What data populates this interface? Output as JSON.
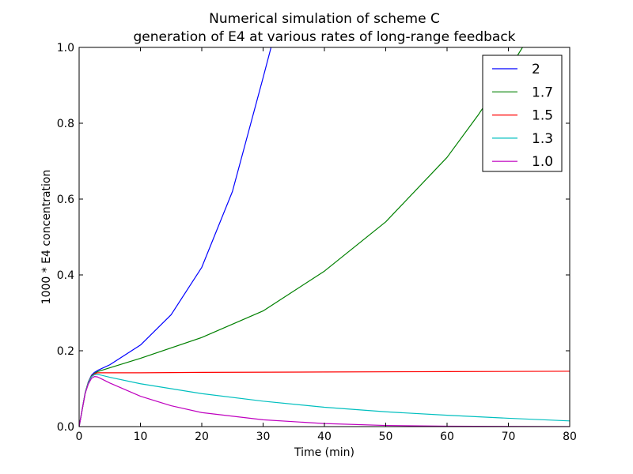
{
  "chart_data": {
    "type": "line",
    "title": "Numerical simulation of scheme C",
    "subtitle": "generation of E4 at various rates of long-range feedback",
    "xlabel": "Time (min)",
    "ylabel": "1000 * E4 concentration",
    "xlim": [
      0,
      80
    ],
    "ylim": [
      0.0,
      1.0
    ],
    "xticks": [
      "0",
      "10",
      "20",
      "30",
      "40",
      "50",
      "60",
      "70",
      "80"
    ],
    "yticks": [
      "0.0",
      "0.2",
      "0.4",
      "0.6",
      "0.8",
      "1.0"
    ],
    "grid": false,
    "legend_position": "top-right",
    "series": [
      {
        "name": "2",
        "color": "#0000ff",
        "x": [
          0,
          0.5,
          1,
          1.5,
          2,
          2.5,
          3,
          5,
          10,
          15,
          20,
          25,
          28,
          30,
          31.3
        ],
        "y": [
          0,
          0.045,
          0.09,
          0.118,
          0.135,
          0.143,
          0.148,
          0.163,
          0.215,
          0.295,
          0.42,
          0.62,
          0.8,
          0.92,
          1.0
        ]
      },
      {
        "name": "1.7",
        "color": "#008000",
        "x": [
          0,
          0.5,
          1,
          1.5,
          2,
          2.5,
          3,
          5,
          10,
          20,
          30,
          40,
          50,
          60,
          65,
          70,
          72.3
        ],
        "y": [
          0,
          0.045,
          0.09,
          0.117,
          0.133,
          0.14,
          0.145,
          0.155,
          0.18,
          0.235,
          0.305,
          0.41,
          0.54,
          0.71,
          0.82,
          0.94,
          1.0
        ]
      },
      {
        "name": "1.5",
        "color": "#ff0000",
        "x": [
          0,
          0.5,
          1,
          1.5,
          2,
          2.5,
          3,
          10,
          20,
          40,
          60,
          80
        ],
        "y": [
          0,
          0.045,
          0.09,
          0.116,
          0.132,
          0.139,
          0.142,
          0.142,
          0.143,
          0.144,
          0.145,
          0.146
        ]
      },
      {
        "name": "1.3",
        "color": "#00bfbf",
        "x": [
          0,
          0.5,
          1,
          1.5,
          2,
          2.5,
          3,
          5,
          10,
          20,
          30,
          40,
          50,
          60,
          70,
          80
        ],
        "y": [
          0,
          0.045,
          0.09,
          0.115,
          0.131,
          0.137,
          0.138,
          0.13,
          0.113,
          0.087,
          0.067,
          0.051,
          0.039,
          0.03,
          0.022,
          0.015
        ]
      },
      {
        "name": "1.0",
        "color": "#bf00bf",
        "x": [
          0,
          0.5,
          1,
          1.5,
          2,
          2.5,
          3,
          5,
          10,
          15,
          20,
          30,
          40,
          50,
          60,
          80
        ],
        "y": [
          0,
          0.045,
          0.088,
          0.112,
          0.127,
          0.132,
          0.131,
          0.115,
          0.08,
          0.055,
          0.037,
          0.018,
          0.008,
          0.003,
          0.001,
          0.0
        ]
      }
    ]
  }
}
